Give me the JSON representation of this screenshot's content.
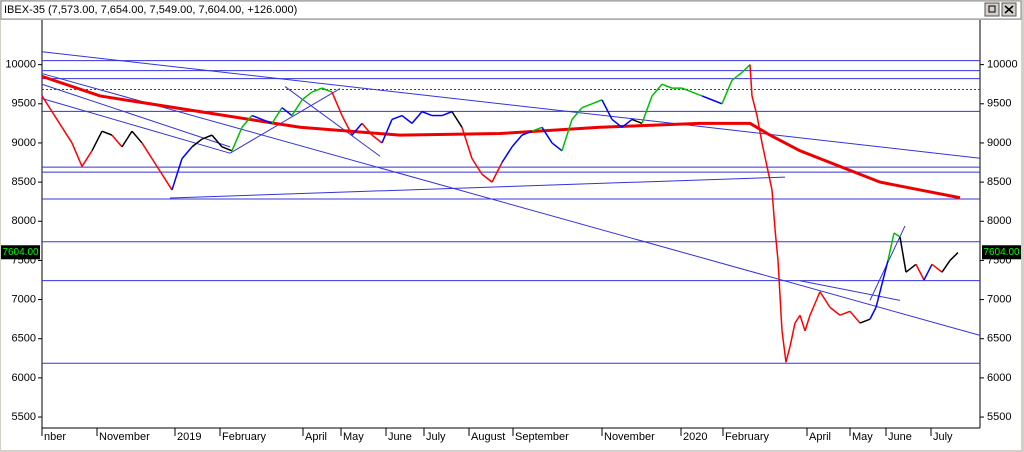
{
  "chart_data": {
    "type": "line",
    "title": "IBEX-35 (7,573.00, 7,654.00, 7,549.00, 7,604.00, +126.000)",
    "xlim": [
      0,
      469
    ],
    "ylim": [
      5360,
      10570
    ],
    "yticks": [
      5500,
      6000,
      6500,
      7000,
      7500,
      8000,
      8500,
      9000,
      9500,
      10000
    ],
    "xticks": [
      {
        "value": 0,
        "label": "nber"
      },
      {
        "value": 27.5,
        "label": "November"
      },
      {
        "value": 66.5,
        "label": "2019"
      },
      {
        "value": 89,
        "label": "February"
      },
      {
        "value": 130.5,
        "label": "April"
      },
      {
        "value": 149.5,
        "label": "May"
      },
      {
        "value": 172,
        "label": "June"
      },
      {
        "value": 191,
        "label": "July"
      },
      {
        "value": 213.5,
        "label": "August"
      },
      {
        "value": 235.5,
        "label": "September"
      },
      {
        "value": 280,
        "label": "November"
      },
      {
        "value": 319.5,
        "label": "2020"
      },
      {
        "value": 340.5,
        "label": "February"
      },
      {
        "value": 382.5,
        "label": "April"
      },
      {
        "value": 404,
        "label": "May"
      },
      {
        "value": 422,
        "label": "June"
      },
      {
        "value": 444.5,
        "label": "July"
      }
    ],
    "last": {
      "value": 7604,
      "label": "7604.00"
    },
    "price": {
      "x": [
        0,
        5,
        10,
        15,
        20,
        25,
        30,
        35,
        40,
        45,
        50,
        55,
        60,
        65,
        70,
        75,
        80,
        85,
        90,
        95,
        100,
        105,
        110,
        115,
        120,
        125,
        130,
        135,
        140,
        145,
        150,
        155,
        160,
        165,
        170,
        175,
        180,
        185,
        190,
        195,
        200,
        205,
        210,
        215,
        220,
        225,
        230,
        235,
        240,
        245,
        250,
        255,
        260,
        265,
        270,
        275,
        280,
        285,
        290,
        295,
        300,
        305,
        310,
        315,
        320,
        325,
        330,
        335,
        340,
        345,
        350,
        354,
        355,
        357.5,
        360,
        362.5,
        365,
        366.5,
        368,
        370,
        372,
        374,
        376.5,
        379,
        381.5,
        384,
        386.5,
        389,
        394,
        399,
        404,
        409,
        414,
        417,
        420,
        423,
        426,
        429,
        432,
        437,
        441,
        445,
        450,
        454,
        458
      ],
      "values": [
        9600,
        9400,
        9200,
        9000,
        8700,
        8900,
        9150,
        9100,
        8950,
        9150,
        9000,
        8800,
        8600,
        8400,
        8800,
        8950,
        9050,
        9100,
        8950,
        8900,
        9200,
        9350,
        9300,
        9250,
        9450,
        9350,
        9550,
        9650,
        9700,
        9650,
        9350,
        9100,
        9250,
        9100,
        9000,
        9300,
        9350,
        9250,
        9400,
        9350,
        9350,
        9400,
        9200,
        8800,
        8600,
        8500,
        8750,
        8950,
        9100,
        9150,
        9200,
        9000,
        8900,
        9300,
        9450,
        9500,
        9550,
        9300,
        9200,
        9300,
        9250,
        9600,
        9750,
        9700,
        9700,
        9650,
        9600,
        9550,
        9500,
        9800,
        9900,
        10000,
        9600,
        9350,
        9000,
        8700,
        8400,
        7900,
        7500,
        6600,
        6200,
        6400,
        6700,
        6800,
        6600,
        6800,
        6950,
        7100,
        6900,
        6800,
        6850,
        6700,
        6750,
        6900,
        7200,
        7500,
        7850,
        7800,
        7350,
        7450,
        7250,
        7450,
        7350,
        7500,
        7600
      ],
      "colors": [
        "#ff0000",
        "#ff0000",
        "#ff0000",
        "#ff0000",
        "#ff0000",
        "#ff0000",
        "#000000",
        "#000000",
        "#ff0000",
        "#000000",
        "#000000",
        "#ff0000",
        "#ff0000",
        "#ff0000",
        "#0000ff",
        "#0000ff",
        "#000000",
        "#000000",
        "#000000",
        "#000000",
        "#00c000",
        "#00c000",
        "#0000ff",
        "#0000ff",
        "#00c000",
        "#0000ff",
        "#00c000",
        "#00c000",
        "#00c000",
        "#00c000",
        "#ff0000",
        "#ff0000",
        "#0000ff",
        "#ff0000",
        "#ff0000",
        "#0000ff",
        "#0000ff",
        "#0000ff",
        "#0000ff",
        "#0000ff",
        "#0000ff",
        "#0000ff",
        "#000000",
        "#ff0000",
        "#ff0000",
        "#ff0000",
        "#ff0000",
        "#0000ff",
        "#0000ff",
        "#0000ff",
        "#00c000",
        "#0000ff",
        "#0000ff",
        "#00c000",
        "#00c000",
        "#00c000",
        "#00c000",
        "#0000ff",
        "#0000ff",
        "#0000ff",
        "#000000",
        "#00c000",
        "#00c000",
        "#00c000",
        "#00c000",
        "#00c000",
        "#00c000",
        "#0000ff",
        "#0000ff",
        "#00c000",
        "#00c000",
        "#00c000",
        "#ff0000",
        "#ff0000",
        "#ff0000",
        "#ff0000",
        "#ff0000",
        "#ff0000",
        "#ff0000",
        "#ff0000",
        "#ff0000",
        "#ff0000",
        "#ff0000",
        "#ff0000",
        "#ff0000",
        "#ff0000",
        "#ff0000",
        "#ff0000",
        "#ff0000",
        "#ff0000",
        "#ff0000",
        "#ff0000",
        "#000000",
        "#0000ff",
        "#0000ff",
        "#0000ff",
        "#00c000",
        "#00c000",
        "#000000",
        "#000000",
        "#ff0000",
        "#0000ff",
        "#ff0000",
        "#000000",
        "#000000"
      ]
    },
    "moving_average": {
      "color": "#ee0000",
      "x": [
        0,
        29,
        79,
        129,
        179,
        229,
        279,
        329,
        354,
        364,
        379,
        404,
        419,
        439,
        459
      ],
      "values": [
        9850,
        9600,
        9400,
        9200,
        9100,
        9120,
        9200,
        9250,
        9250,
        9100,
        8900,
        8650,
        8500,
        8400,
        8300
      ]
    },
    "levels": {
      "color": "#3333dd",
      "values": [
        10051,
        9924,
        9822,
        9403,
        8691,
        8627,
        8285,
        7738,
        7242,
        6187
      ],
      "dotted": [
        9682
      ]
    },
    "trendlines": {
      "color": "#3333dd",
      "segments": [
        [
          [
            0,
            10165
          ],
          [
            469,
            8805
          ]
        ],
        [
          [
            0,
            9886
          ],
          [
            469,
            6543
          ]
        ],
        [
          [
            0,
            9568
          ],
          [
            94,
            8869
          ]
        ],
        [
          [
            0,
            9750
          ],
          [
            94,
            8950
          ]
        ],
        [
          [
            64,
            8297
          ],
          [
            371.5,
            8564
          ]
        ],
        [
          [
            94,
            8869
          ],
          [
            149,
            9695
          ]
        ],
        [
          [
            121.5,
            9720
          ],
          [
            169,
            8830
          ]
        ],
        [
          [
            379,
            7240
          ],
          [
            429,
            6990
          ]
        ],
        [
          [
            414,
            6990
          ],
          [
            431.5,
            7940
          ]
        ]
      ]
    }
  }
}
